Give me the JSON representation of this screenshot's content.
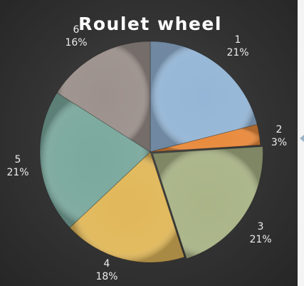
{
  "chart_data": {
    "type": "pie",
    "title": "Roulet wheel",
    "categories": [
      "1",
      "2",
      "3",
      "4",
      "5",
      "6"
    ],
    "values": [
      21,
      3,
      21,
      18,
      21,
      16
    ],
    "percent_labels": [
      "21%",
      "3%",
      "21%",
      "18%",
      "21%",
      "16%"
    ],
    "colors": [
      "#95b6d6",
      "#e88a3c",
      "#a9b487",
      "#e1b85a",
      "#7ba99d",
      "#9c918c"
    ],
    "legend": "none",
    "data_labels": "category and percent, outside"
  }
}
